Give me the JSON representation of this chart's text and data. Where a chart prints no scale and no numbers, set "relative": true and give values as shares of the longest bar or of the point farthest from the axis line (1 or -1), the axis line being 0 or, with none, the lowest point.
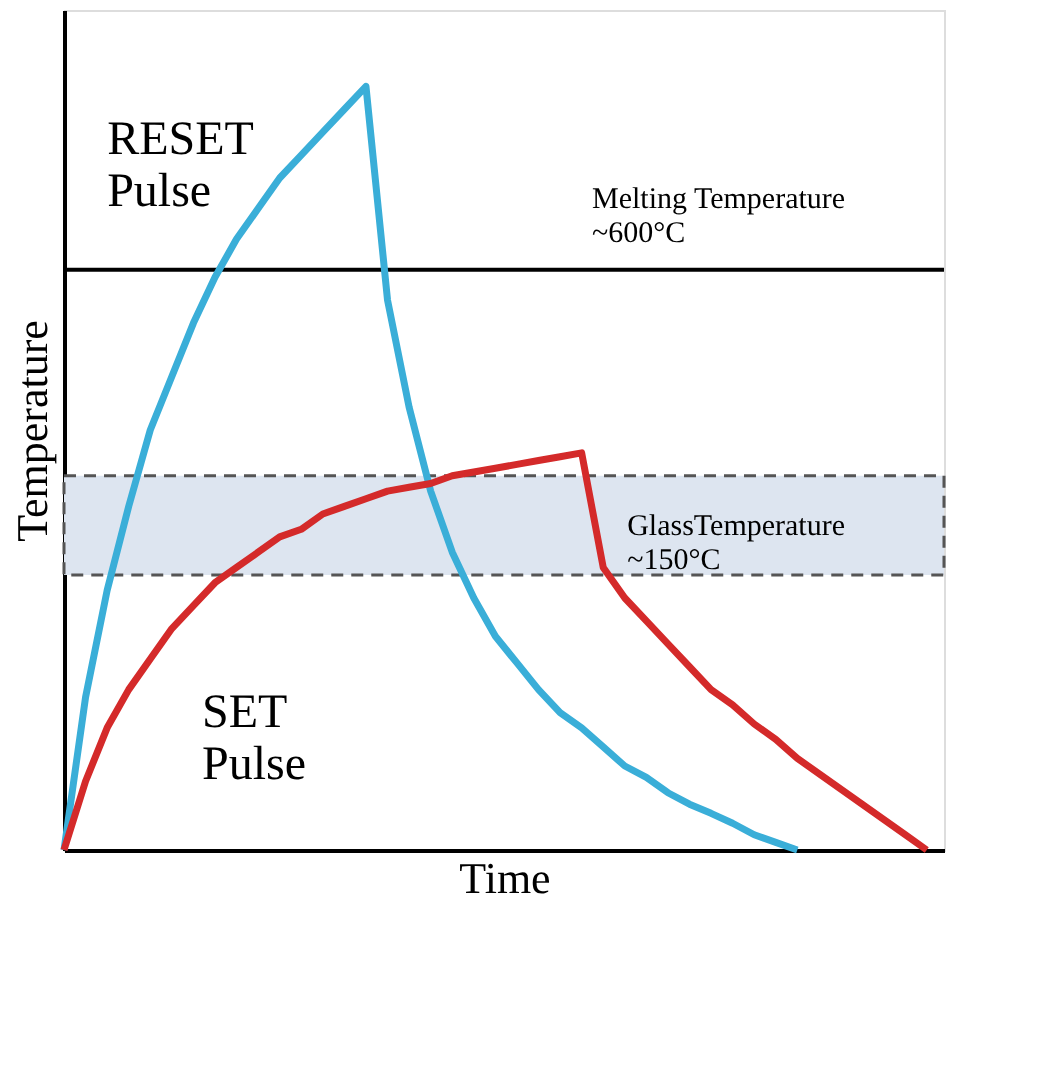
{
  "chart_data": {
    "type": "line",
    "relative": true,
    "xlabel": "Time",
    "ylabel": "Temperature",
    "grid": false,
    "legend": false,
    "marker": "none",
    "line_style": "solid",
    "categories": [
      null,
      null,
      null,
      null,
      null,
      null,
      null,
      null,
      null,
      null,
      null,
      null,
      null,
      null,
      null,
      null,
      null,
      null,
      null,
      null,
      null,
      null,
      null,
      null,
      null,
      null,
      null,
      null,
      null,
      null,
      null,
      null,
      null,
      null,
      null,
      null,
      null,
      null,
      null,
      null,
      null
    ],
    "series": [
      {
        "name": "RESET\nPulse",
        "color": "#3aaed8",
        "values": [
          0,
          0.2,
          0.34,
          0.45,
          0.55,
          0.62,
          0.69,
          0.75,
          0.8,
          0.84,
          0.88,
          0.91,
          0.94,
          0.97,
          1.0,
          0.72,
          0.58,
          0.47,
          0.39,
          0.33,
          0.28,
          0.245,
          0.21,
          0.18,
          0.16,
          0.135,
          0.11,
          0.095,
          0.075,
          0.06,
          0.048,
          0.035,
          0.02,
          0.01,
          0,
          null,
          null,
          null,
          null,
          null,
          null
        ]
      },
      {
        "name": "SET\nPulse",
        "color": "#d42a2a",
        "values": [
          0,
          0.09,
          0.16,
          0.21,
          0.25,
          0.29,
          0.32,
          0.35,
          0.37,
          0.39,
          0.41,
          0.42,
          0.44,
          0.45,
          0.46,
          0.47,
          0.475,
          0.48,
          0.49,
          0.495,
          0.5,
          0.505,
          0.51,
          0.515,
          0.52,
          0.37,
          0.33,
          0.3,
          0.27,
          0.24,
          0.21,
          0.19,
          0.165,
          0.145,
          0.12,
          0.1,
          0.08,
          0.06,
          0.04,
          0.02,
          0
        ]
      }
    ],
    "ref_lines": [
      {
        "axis": "y",
        "value": 0.76,
        "label": "Melting Temperature\n~600°C",
        "color": "#000000"
      }
    ],
    "bands": [
      {
        "axis": "y",
        "from": 0.36,
        "to": 0.49,
        "label": "GlassTemperature\n~150°C",
        "color": "#dde5f0"
      }
    ]
  }
}
